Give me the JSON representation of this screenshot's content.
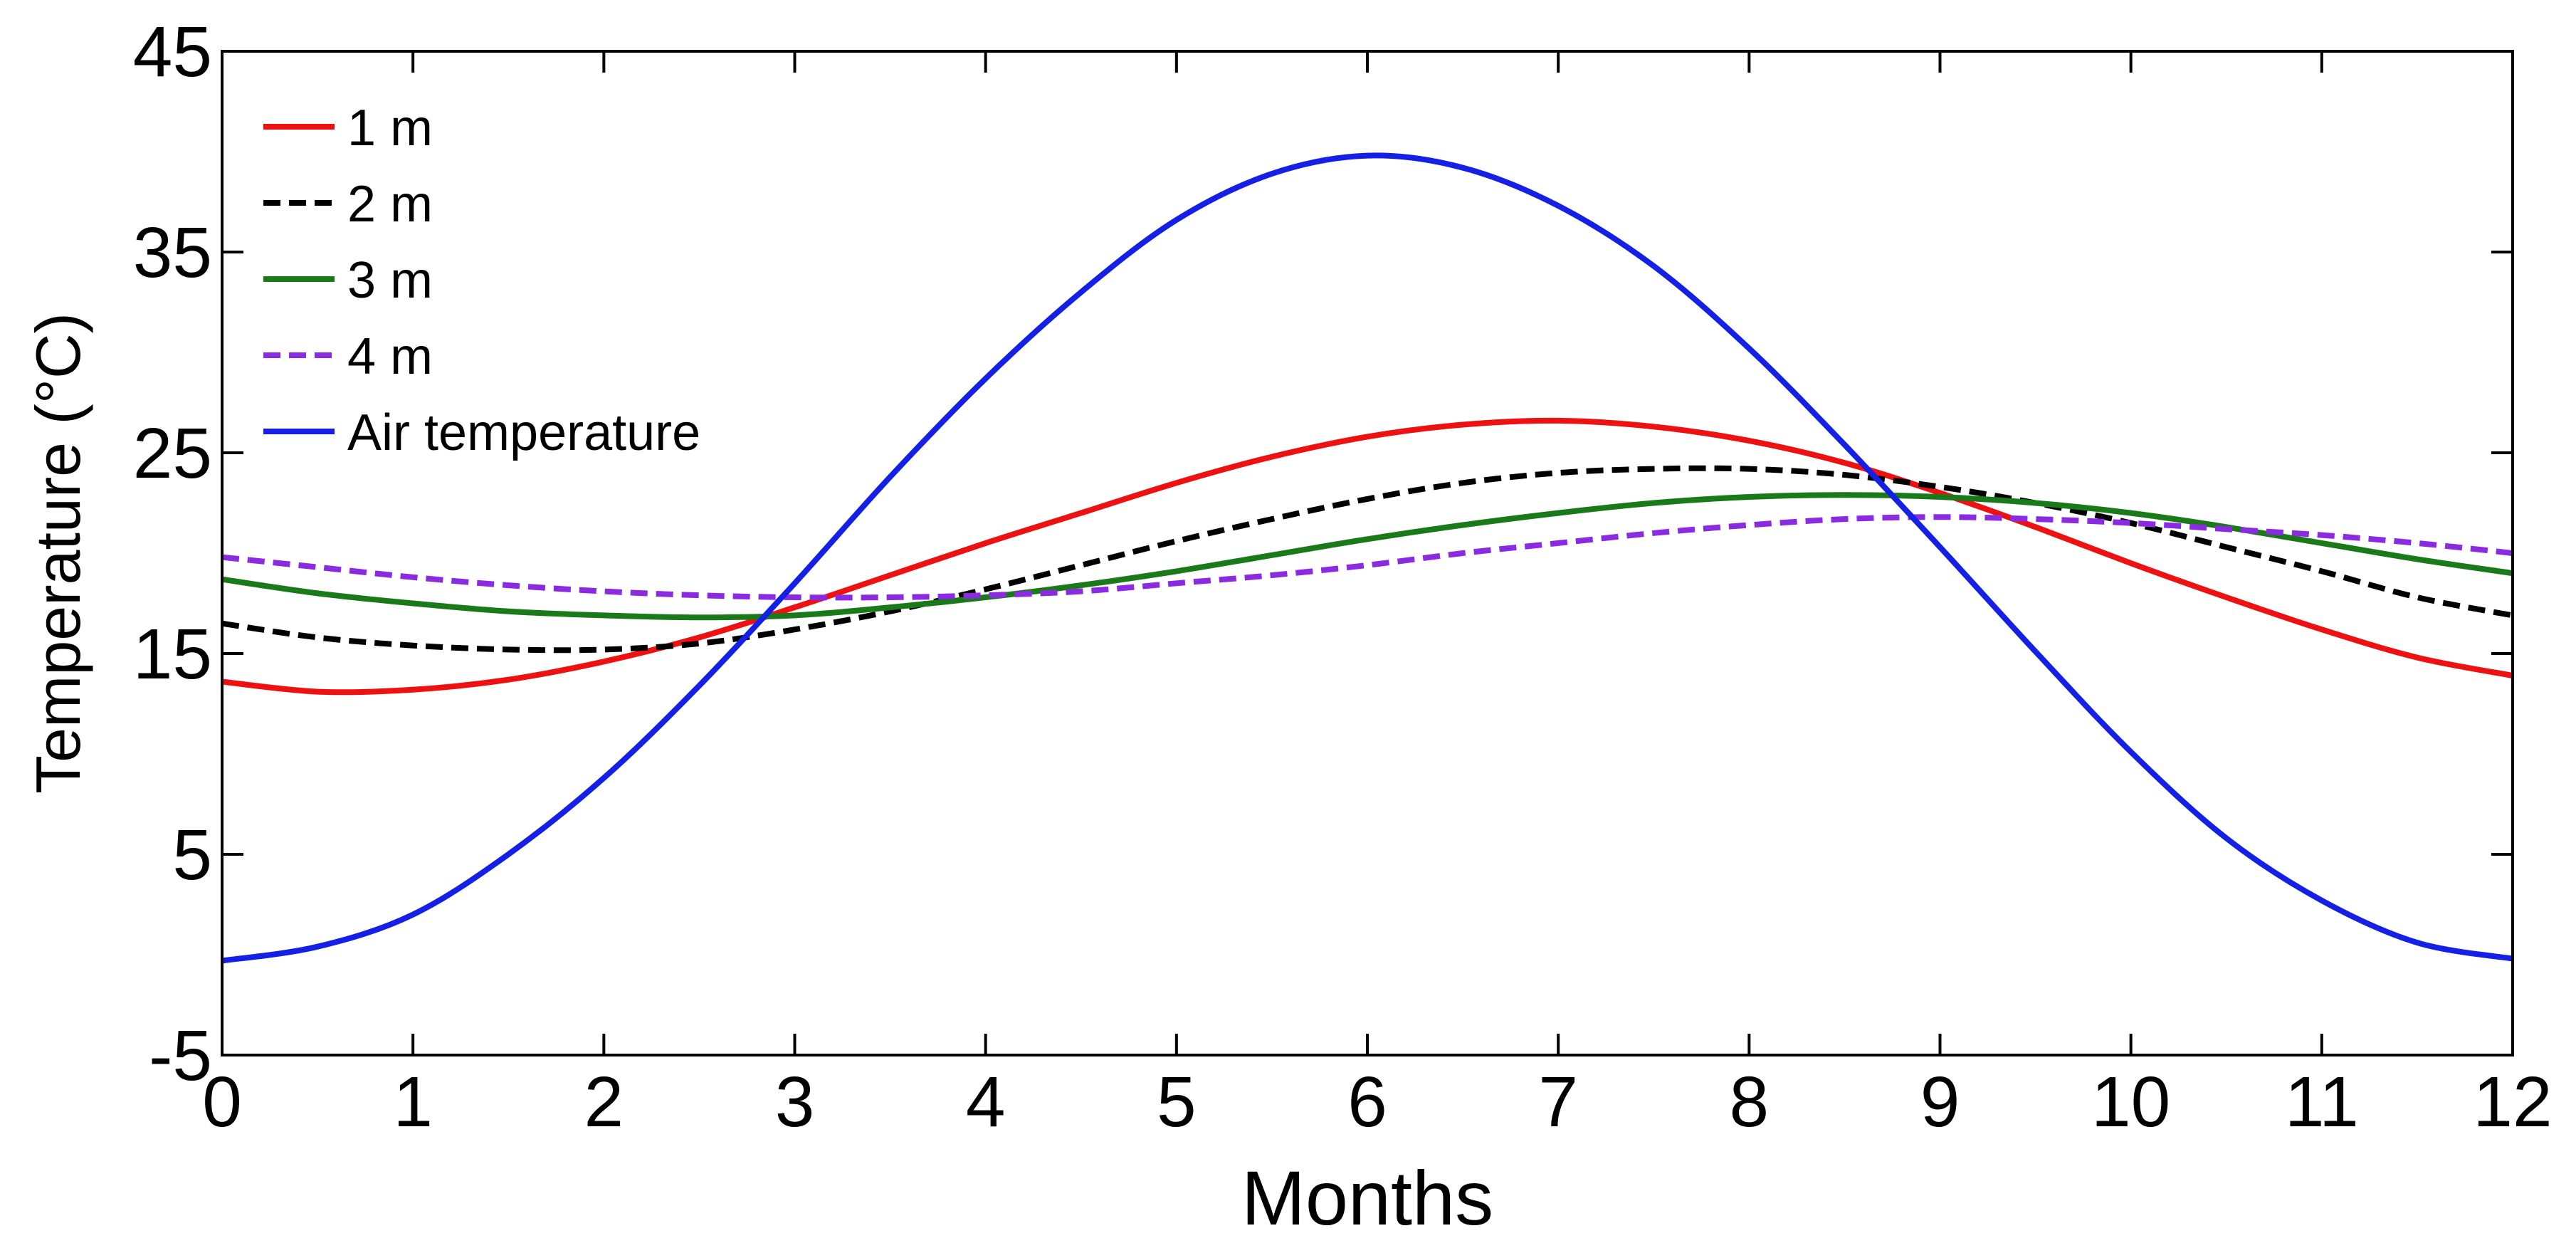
{
  "chart_data": {
    "type": "line",
    "title": "",
    "xlabel": "Months",
    "ylabel": "Temperature (°C)",
    "xlim": [
      0,
      12
    ],
    "ylim": [
      -5,
      45
    ],
    "xticks": [
      "0",
      "1",
      "2",
      "3",
      "4",
      "5",
      "6",
      "7",
      "8",
      "9",
      "10",
      "11",
      "12"
    ],
    "yticks": [
      "-5",
      "5",
      "15",
      "25",
      "35",
      "45"
    ],
    "grid": false,
    "legend_position": "top-left",
    "x": [
      0,
      0.5,
      1,
      1.5,
      2,
      2.5,
      3,
      3.5,
      4,
      4.5,
      5,
      5.5,
      6,
      6.5,
      7,
      7.5,
      8,
      8.5,
      9,
      9.5,
      10,
      10.5,
      11,
      11.5,
      12
    ],
    "series": [
      {
        "name": "1 m",
        "color": "#ee1111",
        "dash": "solid",
        "values": [
          13.6,
          13.1,
          13.2,
          13.7,
          14.6,
          15.8,
          17.3,
          18.9,
          20.5,
          22.0,
          23.5,
          24.8,
          25.8,
          26.4,
          26.6,
          26.3,
          25.6,
          24.5,
          23.0,
          21.3,
          19.5,
          17.8,
          16.2,
          14.8,
          13.9
        ]
      },
      {
        "name": "2 m",
        "color": "#000000",
        "dash": "dashed",
        "values": [
          16.5,
          15.8,
          15.4,
          15.2,
          15.2,
          15.5,
          16.2,
          17.1,
          18.2,
          19.4,
          20.6,
          21.7,
          22.7,
          23.5,
          24.0,
          24.2,
          24.2,
          23.9,
          23.3,
          22.5,
          21.5,
          20.3,
          19.1,
          17.8,
          16.9
        ]
      },
      {
        "name": "3 m",
        "color": "#1a7a1a",
        "dash": "solid",
        "values": [
          18.7,
          18.0,
          17.5,
          17.1,
          16.9,
          16.8,
          16.9,
          17.3,
          17.8,
          18.4,
          19.1,
          19.9,
          20.7,
          21.4,
          22.0,
          22.5,
          22.8,
          22.9,
          22.8,
          22.5,
          22.0,
          21.3,
          20.5,
          19.7,
          19.0
        ]
      },
      {
        "name": "4 m",
        "color": "#8a2be2",
        "dash": "dashed",
        "values": [
          19.8,
          19.3,
          18.8,
          18.4,
          18.1,
          17.9,
          17.8,
          17.8,
          17.9,
          18.1,
          18.5,
          18.9,
          19.4,
          20.0,
          20.5,
          21.0,
          21.4,
          21.7,
          21.8,
          21.7,
          21.5,
          21.2,
          20.9,
          20.5,
          20.0
        ]
      },
      {
        "name": "Air temperature",
        "color": "#1420e6",
        "dash": "solid",
        "values": [
          -0.3,
          0.4,
          2.0,
          5.0,
          8.8,
          13.4,
          18.5,
          23.8,
          28.7,
          33.0,
          36.6,
          38.9,
          39.8,
          39.2,
          37.3,
          34.3,
          30.2,
          25.4,
          20.3,
          15.1,
          10.1,
          5.8,
          2.7,
          0.6,
          -0.2
        ]
      }
    ]
  }
}
